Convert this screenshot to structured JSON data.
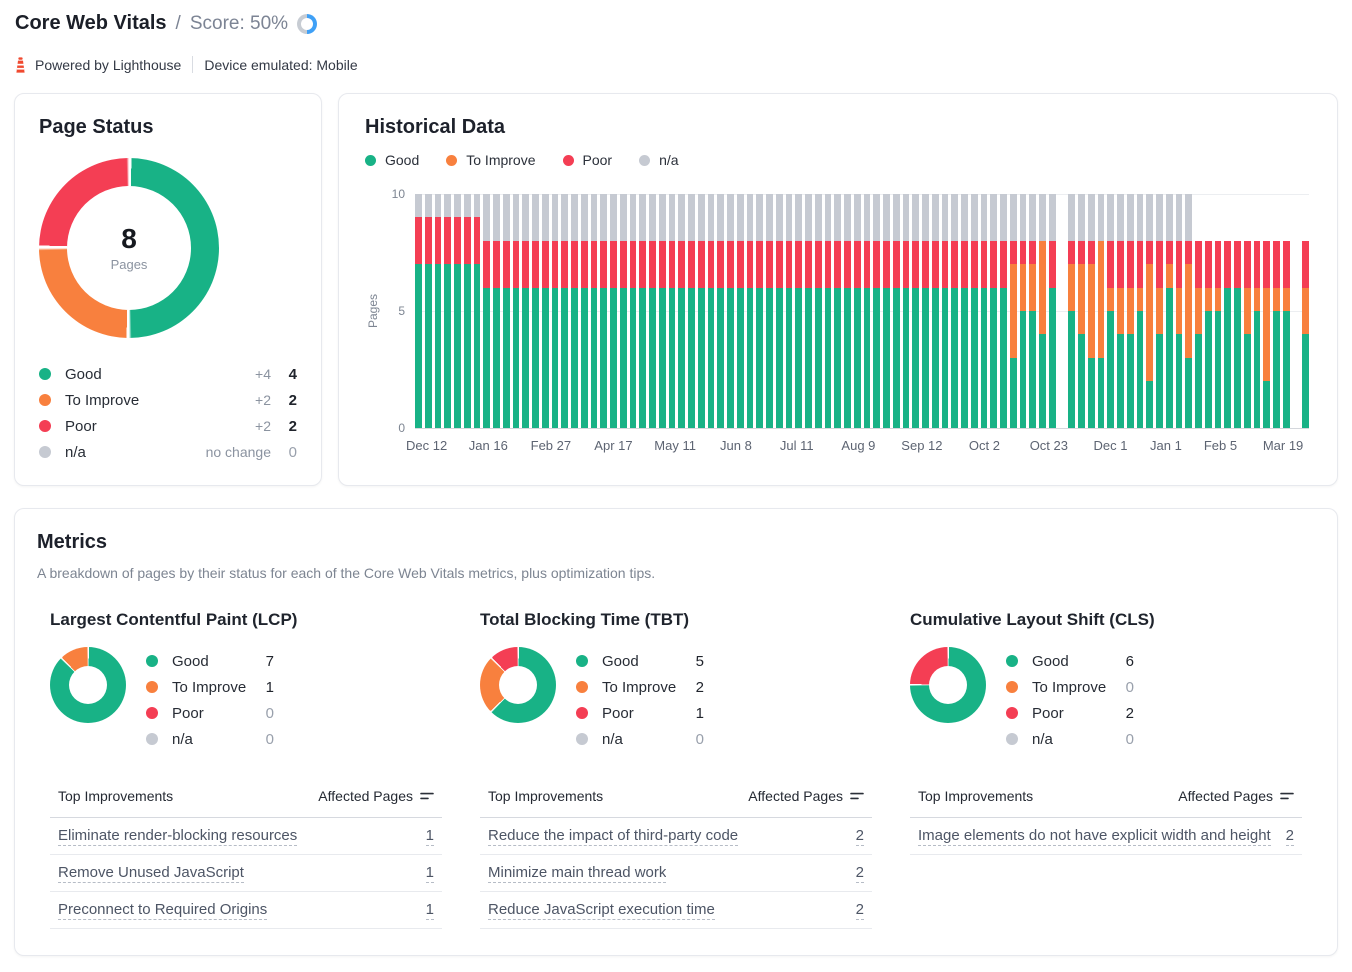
{
  "header": {
    "title": "Core Web Vitals",
    "separator": "/",
    "score_label": "Score: 50%",
    "score_percent": 50,
    "powered_by": "Powered by Lighthouse",
    "device": "Device emulated: Mobile"
  },
  "colors": {
    "good": "#18b286",
    "to_improve": "#f8803e",
    "poor": "#f43e54",
    "na": "#c6cad2",
    "score_blue": "#3fa0f6",
    "score_rest": "#c7ccd3"
  },
  "page_status": {
    "title": "Page Status",
    "center_value": 8,
    "center_label": "Pages",
    "legend": [
      {
        "key": "good",
        "label": "Good",
        "delta": "+4",
        "value": 4
      },
      {
        "key": "to_improve",
        "label": "To Improve",
        "delta": "+2",
        "value": 2
      },
      {
        "key": "poor",
        "label": "Poor",
        "delta": "+2",
        "value": 2
      },
      {
        "key": "na",
        "label": "n/a",
        "delta": "no change",
        "value": 0
      }
    ]
  },
  "historical": {
    "title": "Historical Data",
    "legend": [
      {
        "key": "good",
        "label": "Good"
      },
      {
        "key": "to_improve",
        "label": "To Improve"
      },
      {
        "key": "poor",
        "label": "Poor"
      },
      {
        "key": "na",
        "label": "n/a"
      }
    ],
    "ylabel": "Pages",
    "yticks": [
      10,
      5,
      0
    ]
  },
  "metrics": {
    "title": "Metrics",
    "subtitle": "A breakdown of pages by their status for each of the Core Web Vitals metrics, plus optimization tips.",
    "table_header": {
      "improvements": "Top Improvements",
      "affected": "Affected Pages"
    },
    "columns": [
      {
        "title": "Largest Contentful Paint (LCP)",
        "legend": [
          {
            "key": "good",
            "label": "Good",
            "value": 7
          },
          {
            "key": "to_improve",
            "label": "To Improve",
            "value": 1
          },
          {
            "key": "poor",
            "label": "Poor",
            "value": 0
          },
          {
            "key": "na",
            "label": "n/a",
            "value": 0
          }
        ],
        "rows": [
          {
            "text": "Eliminate render-blocking resources",
            "value": 1
          },
          {
            "text": "Remove Unused JavaScript",
            "value": 1
          },
          {
            "text": "Preconnect to Required Origins",
            "value": 1
          }
        ]
      },
      {
        "title": "Total Blocking Time (TBT)",
        "legend": [
          {
            "key": "good",
            "label": "Good",
            "value": 5
          },
          {
            "key": "to_improve",
            "label": "To Improve",
            "value": 2
          },
          {
            "key": "poor",
            "label": "Poor",
            "value": 1
          },
          {
            "key": "na",
            "label": "n/a",
            "value": 0
          }
        ],
        "rows": [
          {
            "text": "Reduce the impact of third-party code",
            "value": 2
          },
          {
            "text": "Minimize main thread work",
            "value": 2
          },
          {
            "text": "Reduce JavaScript execution time",
            "value": 2
          }
        ]
      },
      {
        "title": "Cumulative Layout Shift (CLS)",
        "legend": [
          {
            "key": "good",
            "label": "Good",
            "value": 6
          },
          {
            "key": "to_improve",
            "label": "To Improve",
            "value": 0
          },
          {
            "key": "poor",
            "label": "Poor",
            "value": 2
          },
          {
            "key": "na",
            "label": "n/a",
            "value": 0
          }
        ],
        "rows": [
          {
            "text": "Image elements do not have explicit width and height",
            "value": 2
          }
        ]
      }
    ]
  },
  "chart_data": [
    {
      "id": "page-status-donut",
      "type": "pie",
      "title": "Page Status",
      "total": 8,
      "unit": "Pages",
      "segments": [
        {
          "label": "Good",
          "value": 4
        },
        {
          "label": "To Improve",
          "value": 2
        },
        {
          "label": "Poor",
          "value": 2
        },
        {
          "label": "n/a",
          "value": 0
        }
      ]
    },
    {
      "id": "historical-stacked-bars",
      "type": "bar",
      "stacked": true,
      "title": "Historical Data",
      "ylabel": "Pages",
      "ylim": [
        0,
        10
      ],
      "yticks": [
        0,
        5,
        10
      ],
      "legend_position": "top",
      "series_keys": [
        "good",
        "to_improve",
        "poor",
        "na"
      ],
      "series_labels": [
        "Good",
        "To Improve",
        "Poor",
        "n/a"
      ],
      "bars": [
        [
          7,
          0,
          2,
          1
        ],
        [
          7,
          0,
          2,
          1
        ],
        [
          7,
          0,
          2,
          1
        ],
        [
          7,
          0,
          2,
          1
        ],
        [
          7,
          0,
          2,
          1
        ],
        [
          7,
          0,
          2,
          1
        ],
        [
          7,
          0,
          2,
          1
        ],
        [
          6,
          0,
          2,
          2
        ],
        [
          6,
          0,
          2,
          2
        ],
        [
          6,
          0,
          2,
          2
        ],
        [
          6,
          0,
          2,
          2
        ],
        [
          6,
          0,
          2,
          2
        ],
        [
          6,
          0,
          2,
          2
        ],
        [
          6,
          0,
          2,
          2
        ],
        [
          6,
          0,
          2,
          2
        ],
        [
          6,
          0,
          2,
          2
        ],
        [
          6,
          0,
          2,
          2
        ],
        [
          6,
          0,
          2,
          2
        ],
        [
          6,
          0,
          2,
          2
        ],
        [
          6,
          0,
          2,
          2
        ],
        [
          6,
          0,
          2,
          2
        ],
        [
          6,
          0,
          2,
          2
        ],
        [
          6,
          0,
          2,
          2
        ],
        [
          6,
          0,
          2,
          2
        ],
        [
          6,
          0,
          2,
          2
        ],
        [
          6,
          0,
          2,
          2
        ],
        [
          6,
          0,
          2,
          2
        ],
        [
          6,
          0,
          2,
          2
        ],
        [
          6,
          0,
          2,
          2
        ],
        [
          6,
          0,
          2,
          2
        ],
        [
          6,
          0,
          2,
          2
        ],
        [
          6,
          0,
          2,
          2
        ],
        [
          6,
          0,
          2,
          2
        ],
        [
          6,
          0,
          2,
          2
        ],
        [
          6,
          0,
          2,
          2
        ],
        [
          6,
          0,
          2,
          2
        ],
        [
          6,
          0,
          2,
          2
        ],
        [
          6,
          0,
          2,
          2
        ],
        [
          6,
          0,
          2,
          2
        ],
        [
          6,
          0,
          2,
          2
        ],
        [
          6,
          0,
          2,
          2
        ],
        [
          6,
          0,
          2,
          2
        ],
        [
          6,
          0,
          2,
          2
        ],
        [
          6,
          0,
          2,
          2
        ],
        [
          6,
          0,
          2,
          2
        ],
        [
          6,
          0,
          2,
          2
        ],
        [
          6,
          0,
          2,
          2
        ],
        [
          6,
          0,
          2,
          2
        ],
        [
          6,
          0,
          2,
          2
        ],
        [
          6,
          0,
          2,
          2
        ],
        [
          6,
          0,
          2,
          2
        ],
        [
          6,
          0,
          2,
          2
        ],
        [
          6,
          0,
          2,
          2
        ],
        [
          6,
          0,
          2,
          2
        ],
        [
          6,
          0,
          2,
          2
        ],
        [
          6,
          0,
          2,
          2
        ],
        [
          6,
          0,
          2,
          2
        ],
        [
          6,
          0,
          2,
          2
        ],
        [
          6,
          0,
          2,
          2
        ],
        [
          6,
          0,
          2,
          2
        ],
        [
          6,
          0,
          2,
          2
        ],
        [
          3,
          4,
          1,
          2
        ],
        [
          5,
          2,
          1,
          2
        ],
        [
          5,
          2,
          1,
          2
        ],
        [
          4,
          4,
          0,
          2
        ],
        [
          6,
          0,
          2,
          2
        ],
        null,
        [
          5,
          2,
          1,
          2
        ],
        [
          4,
          3,
          1,
          2
        ],
        [
          3,
          4,
          1,
          2
        ],
        [
          3,
          5,
          0,
          2
        ],
        [
          5,
          1,
          2,
          2
        ],
        [
          4,
          2,
          2,
          2
        ],
        [
          4,
          2,
          2,
          2
        ],
        [
          5,
          1,
          2,
          2
        ],
        [
          2,
          5,
          1,
          2
        ],
        [
          4,
          2,
          2,
          2
        ],
        [
          6,
          1,
          1,
          2
        ],
        [
          4,
          2,
          2,
          2
        ],
        [
          3,
          4,
          1,
          2
        ],
        [
          4,
          2,
          2,
          0
        ],
        [
          5,
          1,
          2,
          0
        ],
        [
          5,
          1,
          2,
          0
        ],
        [
          6,
          0,
          2,
          0
        ],
        [
          6,
          0,
          2,
          0
        ],
        [
          4,
          2,
          2,
          0
        ],
        [
          5,
          1,
          2,
          0
        ],
        [
          2,
          4,
          2,
          0
        ],
        [
          5,
          1,
          2,
          0
        ],
        [
          5,
          1,
          2,
          0
        ],
        null,
        [
          4,
          2,
          2,
          0
        ]
      ],
      "x_axis_labels": [
        {
          "text": "Dec 12",
          "pos": 1.3
        },
        {
          "text": "Jan 16",
          "pos": 8.2
        },
        {
          "text": "Feb 27",
          "pos": 15.2
        },
        {
          "text": "Apr 17",
          "pos": 22.2
        },
        {
          "text": "May 11",
          "pos": 29.1
        },
        {
          "text": "Jun 8",
          "pos": 35.9
        },
        {
          "text": "Jul 11",
          "pos": 42.7
        },
        {
          "text": "Aug 9",
          "pos": 49.6
        },
        {
          "text": "Sep 12",
          "pos": 56.7
        },
        {
          "text": "Oct 2",
          "pos": 63.7
        },
        {
          "text": "Oct 23",
          "pos": 70.9
        },
        {
          "text": "Dec 1",
          "pos": 77.8
        },
        {
          "text": "Jan 1",
          "pos": 84.0
        },
        {
          "text": "Feb 5",
          "pos": 90.1
        },
        {
          "text": "Mar 19",
          "pos": 97.1
        }
      ]
    },
    {
      "id": "lcp-donut",
      "type": "pie",
      "title": "Largest Contentful Paint (LCP)",
      "segments": [
        {
          "label": "Good",
          "value": 7
        },
        {
          "label": "To Improve",
          "value": 1
        },
        {
          "label": "Poor",
          "value": 0
        },
        {
          "label": "n/a",
          "value": 0
        }
      ]
    },
    {
      "id": "tbt-donut",
      "type": "pie",
      "title": "Total Blocking Time (TBT)",
      "segments": [
        {
          "label": "Good",
          "value": 5
        },
        {
          "label": "To Improve",
          "value": 2
        },
        {
          "label": "Poor",
          "value": 1
        },
        {
          "label": "n/a",
          "value": 0
        }
      ]
    },
    {
      "id": "cls-donut",
      "type": "pie",
      "title": "Cumulative Layout Shift (CLS)",
      "segments": [
        {
          "label": "Good",
          "value": 6
        },
        {
          "label": "To Improve",
          "value": 0
        },
        {
          "label": "Poor",
          "value": 2
        },
        {
          "label": "n/a",
          "value": 0
        }
      ]
    }
  ]
}
